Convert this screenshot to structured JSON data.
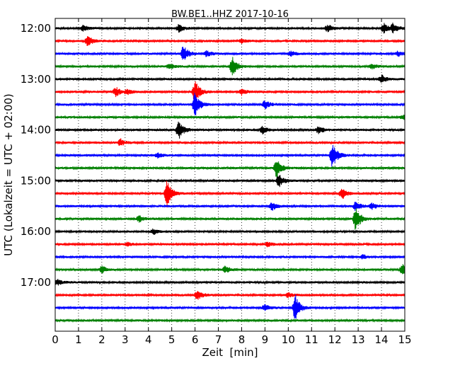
{
  "chart_data": {
    "type": "line",
    "subtype": "dayplot-seismogram",
    "title": "BW.BE1..HHZ 2017-10-16",
    "xlabel": "Zeit  [min]",
    "ylabel": "UTC (Lokalzeit = UTC + 02:00)",
    "xlim": [
      0,
      15
    ],
    "x_ticks": [
      "0",
      "1",
      "2",
      "3",
      "4",
      "5",
      "6",
      "7",
      "8",
      "9",
      "10",
      "11",
      "12",
      "13",
      "14",
      "15"
    ],
    "y_ticks": [
      "12:00",
      "13:00",
      "14:00",
      "15:00",
      "16:00",
      "17:00"
    ],
    "grid": "vertical dotted",
    "color_cycle": [
      "#000000",
      "#ff0000",
      "#0000ff",
      "#008000"
    ],
    "traces_per_hour": 4,
    "traces": [
      {
        "start": "12:00",
        "events": [
          {
            "t": 1.2,
            "a": 0.25
          },
          {
            "t": 5.3,
            "a": 0.3
          },
          {
            "t": 11.7,
            "a": 0.35
          },
          {
            "t": 14.1,
            "a": 0.4
          },
          {
            "t": 14.5,
            "a": 0.4
          }
        ]
      },
      {
        "start": "12:15",
        "events": [
          {
            "t": 1.4,
            "a": 0.45
          },
          {
            "t": 8.0,
            "a": 0.15
          }
        ]
      },
      {
        "start": "12:30",
        "events": [
          {
            "t": 5.5,
            "a": 0.7
          },
          {
            "t": 6.5,
            "a": 0.25
          },
          {
            "t": 10.1,
            "a": 0.2
          },
          {
            "t": 14.7,
            "a": 0.2
          }
        ]
      },
      {
        "start": "12:45",
        "events": [
          {
            "t": 4.9,
            "a": 0.25
          },
          {
            "t": 7.6,
            "a": 0.85
          },
          {
            "t": 13.6,
            "a": 0.2
          }
        ]
      },
      {
        "start": "13:00",
        "events": [
          {
            "t": 14.0,
            "a": 0.35
          }
        ]
      },
      {
        "start": "13:15",
        "events": [
          {
            "t": 2.6,
            "a": 0.4
          },
          {
            "t": 3.1,
            "a": 0.2
          },
          {
            "t": 6.0,
            "a": 0.95
          },
          {
            "t": 8.0,
            "a": 0.25
          }
        ]
      },
      {
        "start": "13:30",
        "events": [
          {
            "t": 6.0,
            "a": 1.0
          },
          {
            "t": 9.0,
            "a": 0.35
          }
        ]
      },
      {
        "start": "13:45",
        "events": [
          {
            "t": 14.9,
            "a": 0.2
          }
        ]
      },
      {
        "start": "14:00",
        "events": [
          {
            "t": 5.3,
            "a": 0.8
          },
          {
            "t": 8.9,
            "a": 0.3
          },
          {
            "t": 11.3,
            "a": 0.3
          }
        ]
      },
      {
        "start": "14:15",
        "events": [
          {
            "t": 2.8,
            "a": 0.3
          }
        ]
      },
      {
        "start": "14:30",
        "events": [
          {
            "t": 4.4,
            "a": 0.2
          },
          {
            "t": 11.9,
            "a": 1.1
          }
        ]
      },
      {
        "start": "14:45",
        "events": [
          {
            "t": 9.5,
            "a": 0.8
          }
        ]
      },
      {
        "start": "15:00",
        "events": [
          {
            "t": 9.6,
            "a": 0.55
          }
        ]
      },
      {
        "start": "15:15",
        "events": [
          {
            "t": 4.8,
            "a": 1.1
          },
          {
            "t": 12.3,
            "a": 0.5
          }
        ]
      },
      {
        "start": "15:30",
        "events": [
          {
            "t": 9.3,
            "a": 0.35
          },
          {
            "t": 12.9,
            "a": 0.4
          },
          {
            "t": 13.6,
            "a": 0.25
          }
        ]
      },
      {
        "start": "15:45",
        "events": [
          {
            "t": 3.6,
            "a": 0.3
          },
          {
            "t": 12.9,
            "a": 1.1
          }
        ]
      },
      {
        "start": "16:00",
        "events": [
          {
            "t": 4.2,
            "a": 0.25
          }
        ]
      },
      {
        "start": "16:15",
        "events": [
          {
            "t": 9.1,
            "a": 0.2
          },
          {
            "t": 3.1,
            "a": 0.15
          }
        ]
      },
      {
        "start": "16:30",
        "events": [
          {
            "t": 13.2,
            "a": 0.2
          }
        ]
      },
      {
        "start": "16:45",
        "events": [
          {
            "t": 2.0,
            "a": 0.3
          },
          {
            "t": 7.3,
            "a": 0.3
          },
          {
            "t": 14.9,
            "a": 0.45
          }
        ]
      },
      {
        "start": "17:00",
        "events": [
          {
            "t": 0.1,
            "a": 0.25
          }
        ]
      },
      {
        "start": "17:15",
        "events": [
          {
            "t": 6.1,
            "a": 0.4
          },
          {
            "t": 10.0,
            "a": 0.2
          }
        ]
      },
      {
        "start": "17:30",
        "events": [
          {
            "t": 9.0,
            "a": 0.3
          },
          {
            "t": 10.3,
            "a": 1.1
          }
        ]
      },
      {
        "start": "17:45",
        "events": []
      }
    ]
  }
}
